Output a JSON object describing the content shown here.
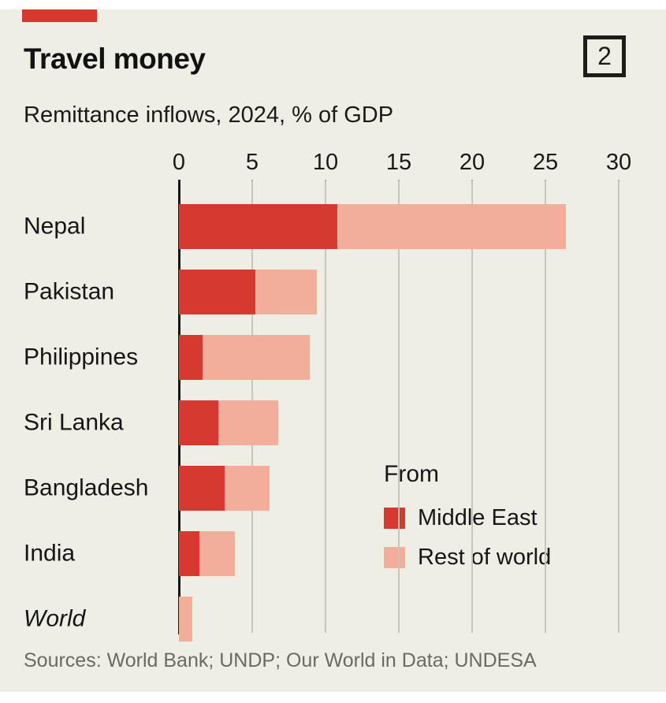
{
  "page": {
    "title": "Travel money",
    "subtitle": "Remittance inflows, 2024, % of GDP",
    "index_label": "2",
    "sources": "Sources: World Bank; UNDP; Our World in Data; UNDESA",
    "colors": {
      "brand_red": "#d6382d",
      "background": "#efeee5",
      "gridline": "#c7c6bd",
      "axis": "#161616",
      "sources_text": "#6b6a62"
    }
  },
  "legend": {
    "heading": "From",
    "items": [
      {
        "label": "Middle East",
        "color": "#d6392f"
      },
      {
        "label": "Rest of world",
        "color": "#f2ae9b"
      }
    ]
  },
  "chart_data": {
    "type": "bar",
    "orientation": "horizontal",
    "stacked": true,
    "title": "Travel money",
    "subtitle": "Remittance inflows, 2024, % of GDP",
    "categories": [
      "Nepal",
      "Pakistan",
      "Philippines",
      "Sri Lanka",
      "Bangladesh",
      "India",
      "World"
    ],
    "italic_categories": [
      "World"
    ],
    "series": [
      {
        "name": "Middle East",
        "color": "#d6392f",
        "values": [
          10.8,
          5.2,
          1.6,
          2.7,
          3.1,
          1.4,
          0
        ]
      },
      {
        "name": "Rest of world",
        "color": "#f2ae9b",
        "values": [
          15.6,
          4.2,
          7.3,
          4.1,
          3.1,
          2.4,
          0.9
        ]
      }
    ],
    "totals": [
      26.4,
      9.4,
      8.9,
      6.8,
      6.2,
      3.8,
      0.9
    ],
    "x_ticks": [
      0,
      5,
      10,
      15,
      20,
      25,
      30
    ],
    "xlim": [
      0,
      30
    ],
    "unit": "% of GDP",
    "grid": "vertical-gridlines",
    "legend_position": "inside-right"
  }
}
